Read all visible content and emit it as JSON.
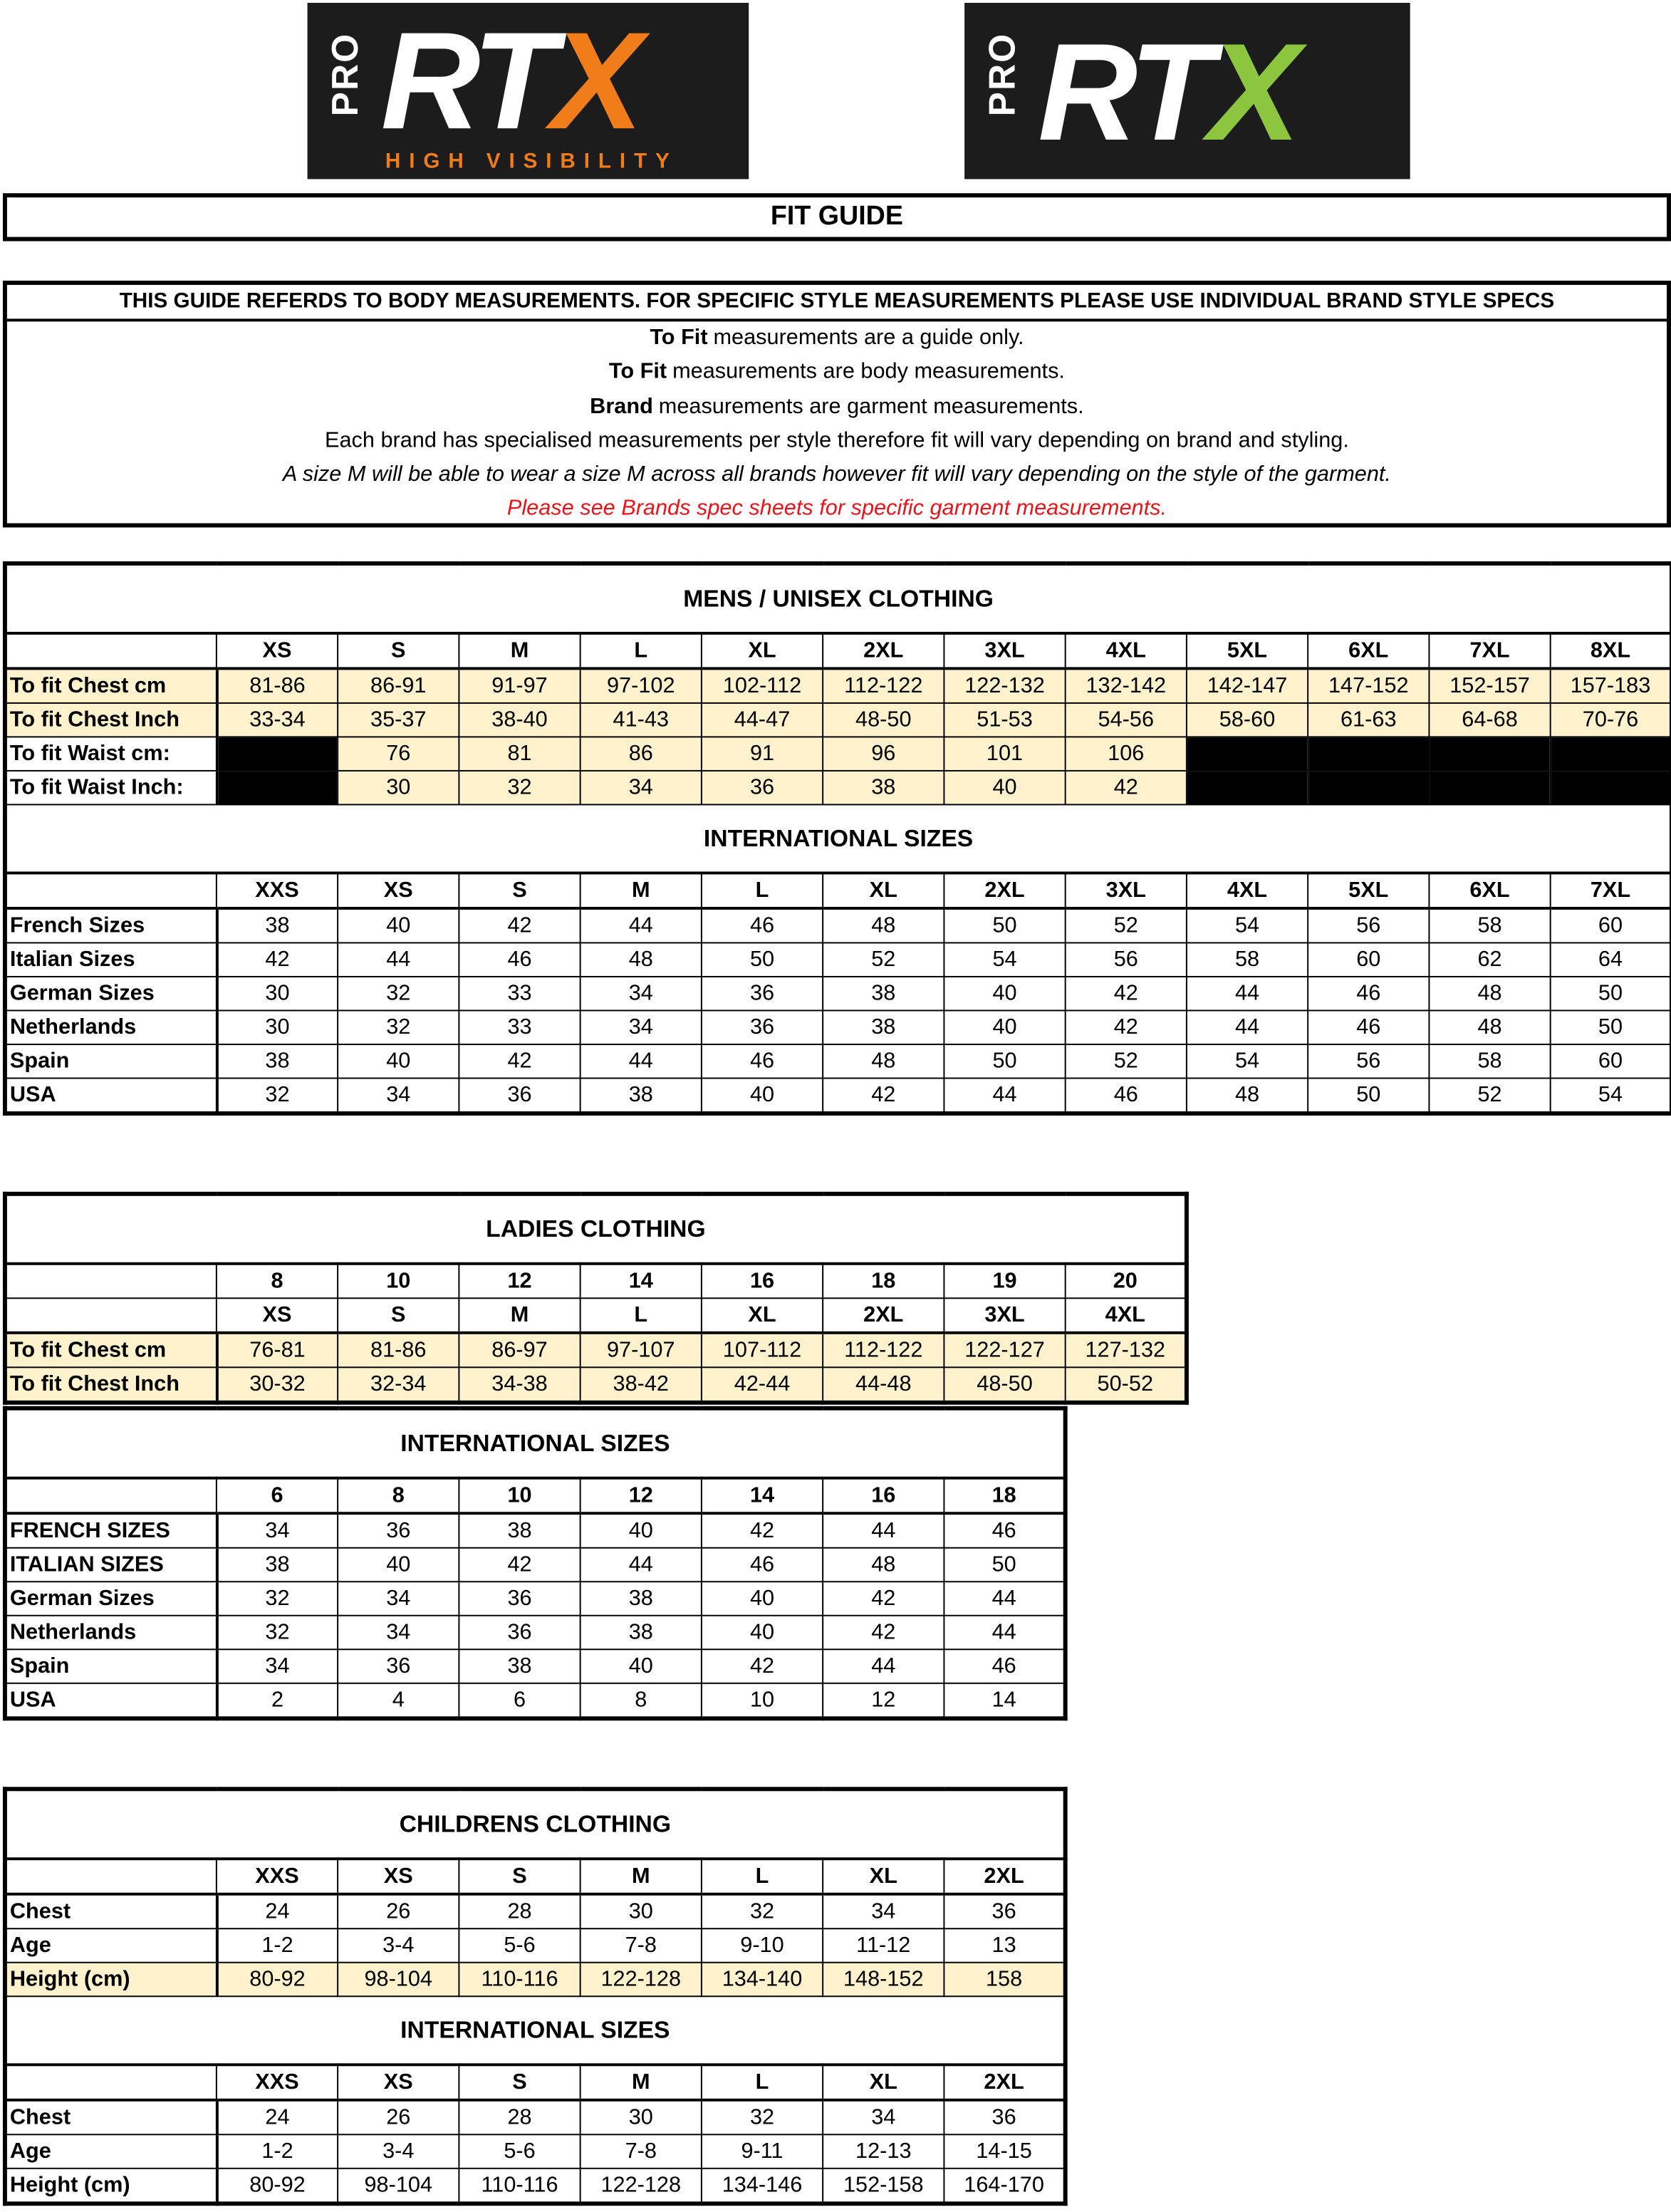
{
  "logos": [
    {
      "pro": "PRO",
      "main": "RT",
      "accent": "X",
      "accent_color": "#f07d1a",
      "sub": "HIGH VISIBILITY"
    },
    {
      "pro": "PRO",
      "main": "RT",
      "accent": "X",
      "accent_color": "#8cc63e"
    }
  ],
  "fit_guide": {
    "title": "FIT GUIDE"
  },
  "notice": {
    "heading": "THIS GUIDE REFERDS TO BODY MEASUREMENTS. FOR SPECIFIC STYLE MEASUREMENTS PLEASE USE INDIVIDUAL BRAND STYLE SPECS",
    "lines": [
      {
        "bold": "To Fit",
        "text": "measurements are a guide only."
      },
      {
        "bold": "To Fit",
        "text": "measurements are body measurements."
      },
      {
        "bold": "Brand",
        "text": "measurements are garment measurements."
      },
      {
        "text": "Each brand has specialised measurements per style therefore fit will vary depending on brand and styling."
      },
      {
        "text": "A size M will be able to wear a size M across all brands however fit will vary depending on the style of the garment.",
        "style": "italic"
      },
      {
        "text": "Please see Brands spec sheets for specific garment measurements.",
        "style": "italic",
        "color": "#e8141b"
      }
    ]
  },
  "tables": [
    {
      "sections": [
        {
          "title": "MENS / UNISEX CLOTHING",
          "headers": [
            [
              "XS",
              "S",
              "M",
              "L",
              "XL",
              "2XL",
              "3XL",
              "4XL",
              "5XL",
              "6XL",
              "7XL",
              "8XL"
            ]
          ],
          "rows": [
            {
              "label": "To fit Chest cm",
              "highlight": "all",
              "values": [
                "81-86",
                "86-91",
                "91-97",
                "97-102",
                "102-112",
                "112-122",
                "122-132",
                "132-142",
                "142-147",
                "147-152",
                "152-157",
                "157-183"
              ]
            },
            {
              "label": "To fit Chest Inch",
              "highlight": "all",
              "values": [
                "33-34",
                "35-37",
                "38-40",
                "41-43",
                "44-47",
                "48-50",
                "51-53",
                "54-56",
                "58-60",
                "61-63",
                "64-68",
                "70-76"
              ]
            },
            {
              "label": "To fit Waist cm:",
              "highlight": "values",
              "values": [
                null,
                76,
                81,
                86,
                91,
                96,
                101,
                106,
                null,
                null,
                null,
                null
              ]
            },
            {
              "label": "To fit Waist Inch:",
              "highlight": "values",
              "values": [
                null,
                30,
                32,
                34,
                36,
                38,
                40,
                42,
                null,
                null,
                null,
                null
              ]
            }
          ]
        },
        {
          "title": "INTERNATIONAL SIZES",
          "headers": [
            [
              "XXS",
              "XS",
              "S",
              "M",
              "L",
              "XL",
              "2XL",
              "3XL",
              "4XL",
              "5XL",
              "6XL",
              "7XL"
            ]
          ],
          "rows": [
            {
              "label": "French Sizes",
              "values": [
                38,
                40,
                42,
                44,
                46,
                48,
                50,
                52,
                54,
                56,
                58,
                60
              ]
            },
            {
              "label": "Italian Sizes",
              "values": [
                42,
                44,
                46,
                48,
                50,
                52,
                54,
                56,
                58,
                60,
                62,
                64
              ]
            },
            {
              "label": "German Sizes",
              "values": [
                30,
                32,
                33,
                34,
                36,
                38,
                40,
                42,
                44,
                46,
                48,
                50
              ]
            },
            {
              "label": "Netherlands",
              "values": [
                30,
                32,
                33,
                34,
                36,
                38,
                40,
                42,
                44,
                46,
                48,
                50
              ]
            },
            {
              "label": "Spain",
              "values": [
                38,
                40,
                42,
                44,
                46,
                48,
                50,
                52,
                54,
                56,
                58,
                60
              ]
            },
            {
              "label": "USA",
              "values": [
                32,
                34,
                36,
                38,
                40,
                42,
                44,
                46,
                48,
                50,
                52,
                54
              ]
            }
          ]
        }
      ]
    },
    {
      "sections": [
        {
          "title": "LADIES CLOTHING",
          "headers": [
            [
              8,
              10,
              12,
              14,
              16,
              18,
              19,
              20
            ],
            [
              "XS",
              "S",
              "M",
              "L",
              "XL",
              "2XL",
              "3XL",
              "4XL"
            ]
          ],
          "rows": [
            {
              "label": "To fit Chest cm",
              "highlight": "all",
              "values": [
                "76-81",
                "81-86",
                "86-97",
                "97-107",
                "107-112",
                "112-122",
                "122-127",
                "127-132"
              ]
            },
            {
              "label": "To fit Chest Inch",
              "highlight": "all",
              "values": [
                "30-32",
                "32-34",
                "34-38",
                "38-42",
                "42-44",
                "44-48",
                "48-50",
                "50-52"
              ]
            }
          ]
        }
      ]
    },
    {
      "sections": [
        {
          "title": "INTERNATIONAL SIZES",
          "headers": [
            [
              6,
              8,
              10,
              12,
              14,
              16,
              18
            ]
          ],
          "rows": [
            {
              "label": "FRENCH SIZES",
              "values": [
                34,
                36,
                38,
                40,
                42,
                44,
                46
              ]
            },
            {
              "label": "ITALIAN SIZES",
              "values": [
                38,
                40,
                42,
                44,
                46,
                48,
                50
              ]
            },
            {
              "label": "German Sizes",
              "values": [
                32,
                34,
                36,
                38,
                40,
                42,
                44
              ]
            },
            {
              "label": "Netherlands",
              "values": [
                32,
                34,
                36,
                38,
                40,
                42,
                44
              ]
            },
            {
              "label": "Spain",
              "values": [
                34,
                36,
                38,
                40,
                42,
                44,
                46
              ]
            },
            {
              "label": "USA",
              "values": [
                2,
                4,
                6,
                8,
                10,
                12,
                14
              ]
            }
          ]
        }
      ]
    },
    {
      "sections": [
        {
          "title": "CHILDRENS CLOTHING",
          "headers": [
            [
              "XXS",
              "XS",
              "S",
              "M",
              "L",
              "XL",
              "2XL"
            ]
          ],
          "rows": [
            {
              "label": "Chest",
              "values": [
                24,
                26,
                28,
                30,
                32,
                34,
                36
              ]
            },
            {
              "label": "Age",
              "values": [
                "1-2",
                "3-4",
                "5-6",
                "7-8",
                "9-10",
                "11-12",
                13
              ]
            },
            {
              "label": "Height (cm)",
              "highlight": "all",
              "values": [
                "80-92",
                "98-104",
                "110-116",
                "122-128",
                "134-140",
                "148-152",
                158
              ]
            }
          ]
        },
        {
          "title": "INTERNATIONAL SIZES",
          "headers": [
            [
              "XXS",
              "XS",
              "S",
              "M",
              "L",
              "XL",
              "2XL"
            ]
          ],
          "rows": [
            {
              "label": "Chest",
              "values": [
                24,
                26,
                28,
                30,
                32,
                34,
                36
              ]
            },
            {
              "label": "Age",
              "values": [
                "1-2",
                "3-4",
                "5-6",
                "7-8",
                "9-11",
                "12-13",
                "14-15"
              ]
            },
            {
              "label": "Height (cm)",
              "values": [
                "80-92",
                "98-104",
                "110-116",
                "122-128",
                "134-146",
                "152-158",
                "164-170"
              ]
            }
          ]
        }
      ]
    }
  ]
}
